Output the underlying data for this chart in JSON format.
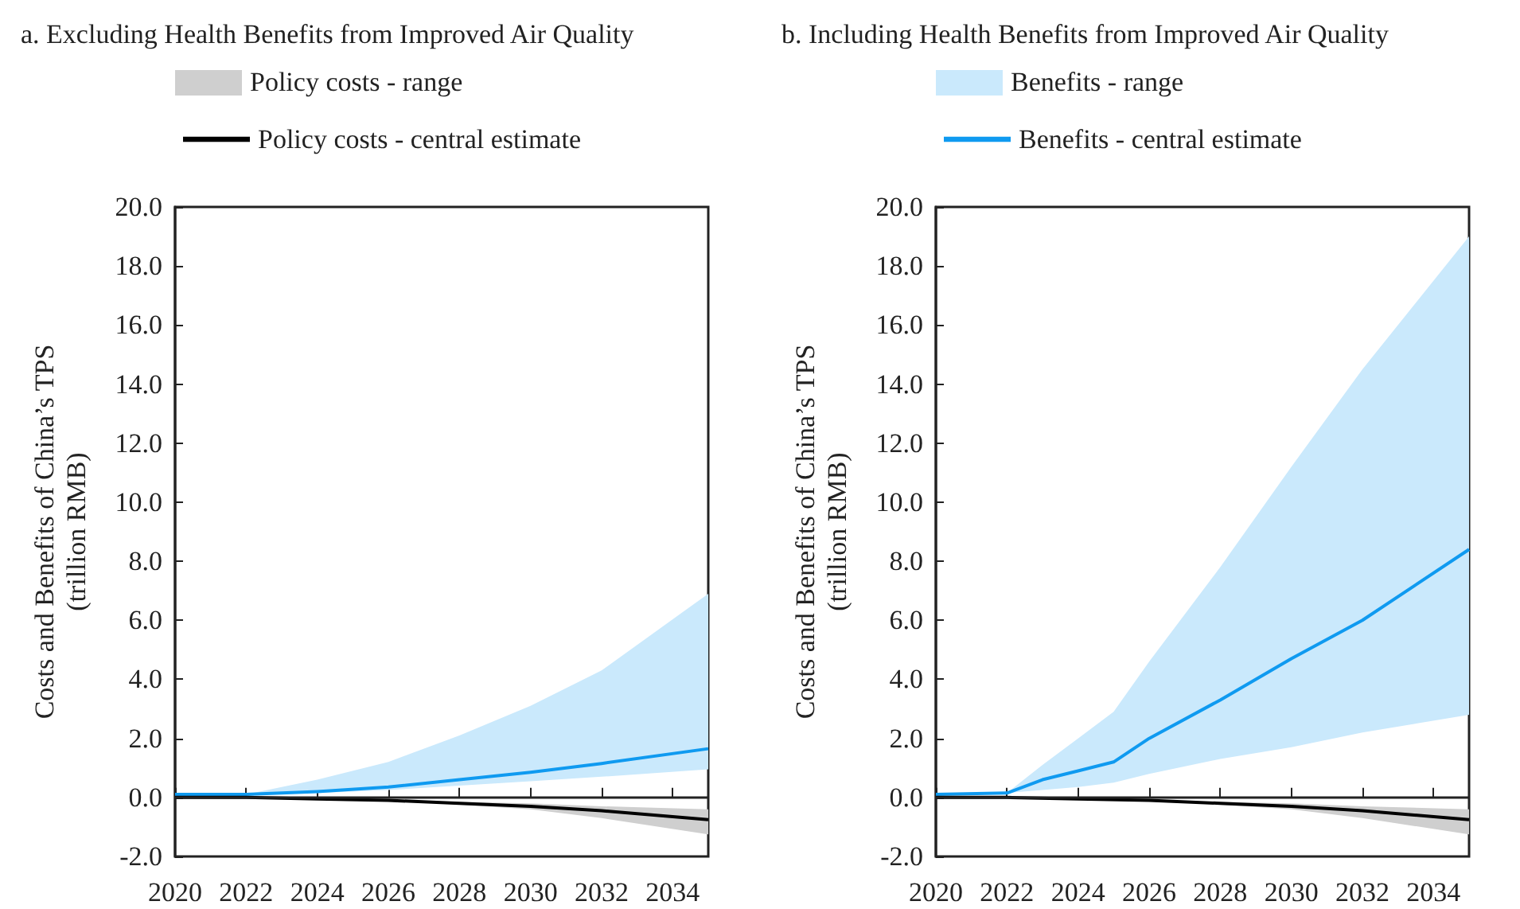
{
  "chart_data": [
    {
      "type": "line",
      "title": "a. Excluding Health Benefits from Improved Air Quality",
      "ylabel": "Costs and Benefits of China’s TPS\n(trillion RMB)",
      "xlim": [
        2020,
        2035
      ],
      "xticks": [
        2020,
        2022,
        2024,
        2026,
        2028,
        2030,
        2032,
        2034
      ],
      "ylim": [
        -2,
        20
      ],
      "yticks": [
        {
          "value": -2,
          "label": "-2.0"
        },
        {
          "value": 0,
          "label": "0.0"
        },
        {
          "value": 2,
          "label": "2.0"
        },
        {
          "value": 4,
          "label": "4.0"
        },
        {
          "value": 6,
          "label": "6.0"
        },
        {
          "value": 8,
          "label": "8.0"
        },
        {
          "value": 10,
          "label": "10.0"
        },
        {
          "value": 12,
          "label": "12.0"
        },
        {
          "value": 14,
          "label": "14.0"
        },
        {
          "value": 16,
          "label": "16.0"
        },
        {
          "value": 18,
          "label": "18.0"
        },
        {
          "value": 20,
          "label": "20.0"
        }
      ],
      "grid": false,
      "legend": "top",
      "marker": "none",
      "line_style": "solid",
      "ref_lines": [
        {
          "axis": "y",
          "value": 0,
          "color": "#222222"
        }
      ],
      "annotations": [
        "Policy costs - range"
      ],
      "series": [
        {
          "color": "#0f9af0",
          "x": [
            2020,
            2022,
            2024,
            2026,
            2028,
            2030,
            2032,
            2035
          ],
          "values": [
            0.1,
            0.1,
            0.2,
            0.35,
            0.6,
            0.85,
            1.15,
            1.65
          ],
          "lower": [
            0.1,
            0.1,
            0.15,
            0.25,
            0.4,
            0.55,
            0.7,
            0.95
          ],
          "upper": [
            0.1,
            0.1,
            0.6,
            1.2,
            2.1,
            3.1,
            4.3,
            6.9
          ]
        },
        {
          "name": "Policy costs - central estimate",
          "color": "#000000",
          "x": [
            2020,
            2022,
            2024,
            2026,
            2028,
            2030,
            2032,
            2035
          ],
          "values": [
            0,
            0,
            -0.05,
            -0.1,
            -0.2,
            -0.3,
            -0.45,
            -0.75
          ],
          "lower": [
            0,
            0,
            -0.05,
            -0.1,
            -0.25,
            -0.4,
            -0.7,
            -1.25
          ],
          "upper": [
            0,
            0,
            -0.05,
            -0.1,
            -0.15,
            -0.2,
            -0.3,
            -0.4
          ]
        }
      ]
    },
    {
      "type": "line",
      "title": "b. Including Health Benefits from Improved Air Quality",
      "ylabel": "Costs and Benefits of China’s TPS\n(trillion RMB)",
      "xlim": [
        2020,
        2035
      ],
      "xticks": [
        2020,
        2022,
        2024,
        2026,
        2028,
        2030,
        2032,
        2034
      ],
      "ylim": [
        -2,
        20
      ],
      "yticks": [
        {
          "value": -2,
          "label": "-2.0"
        },
        {
          "value": 0,
          "label": "0.0"
        },
        {
          "value": 2,
          "label": "2.0"
        },
        {
          "value": 4,
          "label": "4.0"
        },
        {
          "value": 6,
          "label": "6.0"
        },
        {
          "value": 8,
          "label": "8.0"
        },
        {
          "value": 10,
          "label": "10.0"
        },
        {
          "value": 12,
          "label": "12.0"
        },
        {
          "value": 14,
          "label": "14.0"
        },
        {
          "value": 16,
          "label": "16.0"
        },
        {
          "value": 18,
          "label": "18.0"
        },
        {
          "value": 20,
          "label": "20.0"
        }
      ],
      "grid": false,
      "legend": "top",
      "marker": "none",
      "line_style": "solid",
      "ref_lines": [
        {
          "axis": "y",
          "value": 0,
          "color": "#222222"
        }
      ],
      "annotations": [
        "Benefits - range"
      ],
      "series": [
        {
          "name": "Benefits - central estimate",
          "color": "#0f9af0",
          "x": [
            2020,
            2022,
            2023,
            2024,
            2025,
            2026,
            2028,
            2030,
            2032,
            2035
          ],
          "values": [
            0.1,
            0.15,
            0.6,
            0.9,
            1.2,
            2.0,
            3.3,
            4.7,
            6.0,
            8.4
          ],
          "lower": [
            0.1,
            0.15,
            0.25,
            0.35,
            0.5,
            0.8,
            1.3,
            1.7,
            2.2,
            2.8
          ],
          "upper": [
            0.1,
            0.15,
            1.1,
            2.0,
            2.9,
            4.6,
            7.8,
            11.2,
            14.5,
            19.0
          ]
        },
        {
          "color": "#000000",
          "x": [
            2020,
            2022,
            2024,
            2026,
            2028,
            2030,
            2032,
            2035
          ],
          "values": [
            0,
            0,
            -0.05,
            -0.1,
            -0.2,
            -0.3,
            -0.45,
            -0.75
          ],
          "lower": [
            0,
            0,
            -0.05,
            -0.1,
            -0.25,
            -0.4,
            -0.7,
            -1.25
          ],
          "upper": [
            0,
            0,
            -0.05,
            -0.1,
            -0.15,
            -0.2,
            -0.3,
            -0.4
          ]
        }
      ]
    }
  ]
}
